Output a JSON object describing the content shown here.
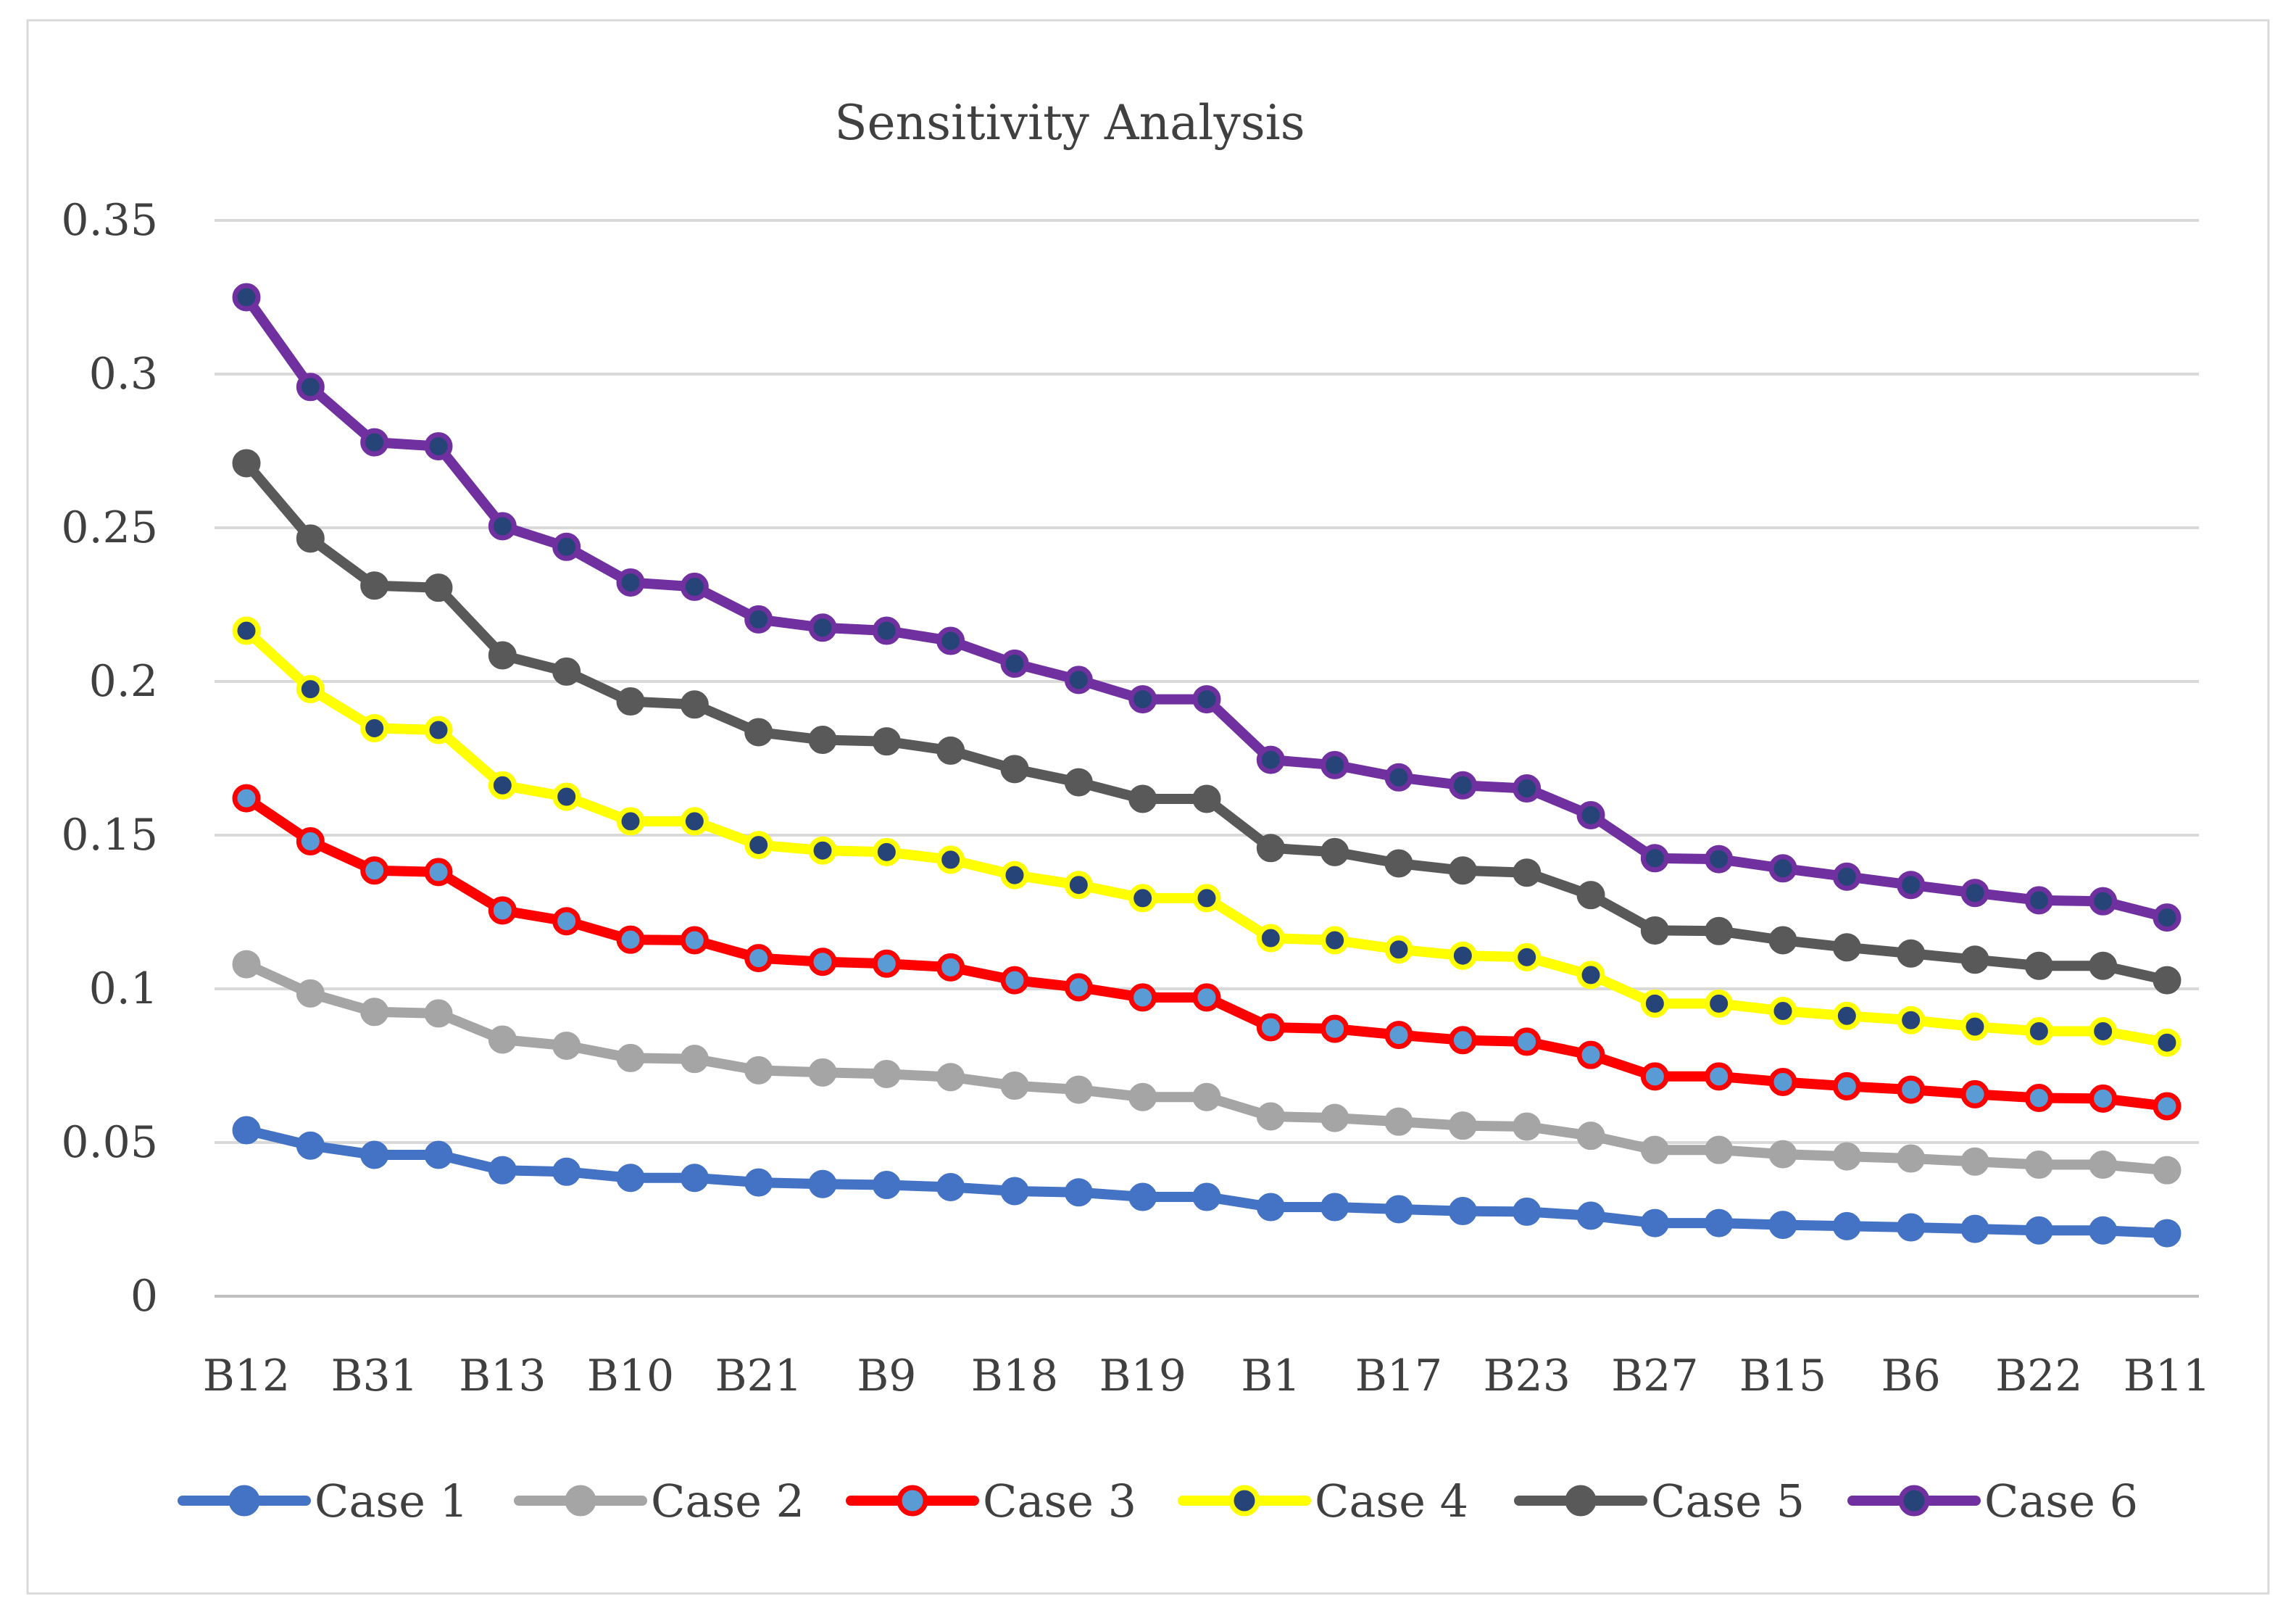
{
  "chart_data": {
    "type": "line",
    "title": "Sensitivity Analysis",
    "xlabel": "",
    "ylabel": "",
    "ylim": [
      0,
      0.35
    ],
    "yticks": [
      "0",
      "0.05",
      "0.1",
      "0.15",
      "0.2",
      "0.25",
      "0.3",
      "0.35"
    ],
    "ytick_values": [
      0,
      0.05,
      0.1,
      0.15,
      0.2,
      0.25,
      0.3,
      0.35
    ],
    "grid": true,
    "legend_position": "bottom",
    "x_tick_labels": [
      "B12",
      "B31",
      "B13",
      "B10",
      "B21",
      "B9",
      "B18",
      "B19",
      "B1",
      "B17",
      "B23",
      "B27",
      "B15",
      "B6",
      "B22",
      "B11"
    ],
    "x_tick_indices": [
      0,
      2,
      4,
      6,
      8,
      10,
      12,
      14,
      16,
      18,
      20,
      22,
      24,
      26,
      28,
      30
    ],
    "point_count": 31,
    "series": [
      {
        "name": "Case 1",
        "color": "#4472C4",
        "marker_fill": "#4472C4",
        "marker_stroke": "#4472C4",
        "values": [
          0.054,
          0.049,
          0.046,
          0.046,
          0.041,
          0.0405,
          0.0385,
          0.0385,
          0.037,
          0.0365,
          0.0362,
          0.0355,
          0.0342,
          0.0338,
          0.0323,
          0.0323,
          0.029,
          0.029,
          0.0283,
          0.0277,
          0.0275,
          0.0262,
          0.0238,
          0.0238,
          0.0232,
          0.0228,
          0.0224,
          0.0219,
          0.0214,
          0.0214,
          0.0205
        ]
      },
      {
        "name": "Case 2",
        "color": "#A5A5A5",
        "marker_fill": "#A5A5A5",
        "marker_stroke": "#A5A5A5",
        "values": [
          0.108,
          0.0985,
          0.0925,
          0.092,
          0.0835,
          0.0815,
          0.0775,
          0.0772,
          0.0735,
          0.0728,
          0.0723,
          0.0713,
          0.0685,
          0.0672,
          0.0648,
          0.0648,
          0.0585,
          0.058,
          0.0568,
          0.0555,
          0.0552,
          0.0522,
          0.0476,
          0.0476,
          0.0462,
          0.0455,
          0.0448,
          0.0438,
          0.0428,
          0.0428,
          0.041
        ]
      },
      {
        "name": "Case 3",
        "color": "#FF0000",
        "marker_fill": "#5B9BD5",
        "marker_stroke": "#FF0000",
        "values": [
          0.162,
          0.148,
          0.1385,
          0.138,
          0.1255,
          0.122,
          0.116,
          0.1158,
          0.11,
          0.1088,
          0.1082,
          0.107,
          0.1028,
          0.1005,
          0.0972,
          0.0972,
          0.0875,
          0.087,
          0.085,
          0.0833,
          0.0828,
          0.0785,
          0.0715,
          0.0715,
          0.0697,
          0.0683,
          0.0672,
          0.0657,
          0.0645,
          0.0643,
          0.0618
        ]
      },
      {
        "name": "Case 4",
        "color": "#FFFF00",
        "marker_fill": "#264478",
        "marker_stroke": "#FFFF00",
        "values": [
          0.2165,
          0.1975,
          0.1848,
          0.1842,
          0.1662,
          0.1625,
          0.1545,
          0.1545,
          0.1468,
          0.145,
          0.1445,
          0.142,
          0.137,
          0.1338,
          0.1295,
          0.1295,
          0.1165,
          0.1158,
          0.1128,
          0.1108,
          0.1103,
          0.1045,
          0.0952,
          0.0952,
          0.0928,
          0.0912,
          0.0898,
          0.0877,
          0.0862,
          0.0862,
          0.0825
        ]
      },
      {
        "name": "Case 5",
        "color": "#595959",
        "marker_fill": "#595959",
        "marker_stroke": "#595959",
        "values": [
          0.271,
          0.2465,
          0.2312,
          0.2305,
          0.2085,
          0.2032,
          0.1935,
          0.1925,
          0.1835,
          0.181,
          0.1805,
          0.1775,
          0.1715,
          0.1672,
          0.1618,
          0.1618,
          0.1458,
          0.1445,
          0.1408,
          0.1385,
          0.1378,
          0.1305,
          0.119,
          0.1188,
          0.1158,
          0.1135,
          0.1115,
          0.1095,
          0.1075,
          0.1075,
          0.1028
        ]
      },
      {
        "name": "Case 6",
        "color": "#7030A0",
        "marker_fill": "#264478",
        "marker_stroke": "#7030A0",
        "values": [
          0.325,
          0.2958,
          0.2778,
          0.2765,
          0.2505,
          0.2438,
          0.2322,
          0.2308,
          0.2202,
          0.2175,
          0.2165,
          0.2132,
          0.2058,
          0.2005,
          0.1942,
          0.1942,
          0.1745,
          0.1728,
          0.1688,
          0.1662,
          0.1652,
          0.1565,
          0.1425,
          0.1422,
          0.1392,
          0.1365,
          0.1338,
          0.1312,
          0.1288,
          0.1285,
          0.1232
        ]
      }
    ]
  }
}
